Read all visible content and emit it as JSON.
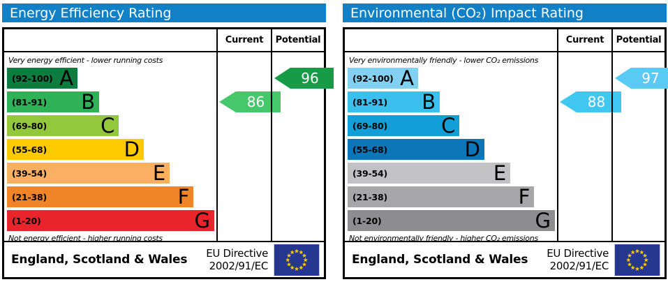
{
  "colors": {
    "title_bg": "#1280c6",
    "title_fg": "#ffffff",
    "eu_flag_bg": "#25378e",
    "eu_flag_star": "#ffcc00"
  },
  "panels": [
    {
      "title": "Energy Efficiency Rating",
      "header": {
        "current": "Current",
        "potential": "Potential"
      },
      "captions": {
        "top": "Very energy efficient - lower running costs",
        "bottom": "Not energy efficient - higher running costs"
      },
      "bands": [
        {
          "range": "(92-100)",
          "letter": "A",
          "color": "#0c7d3f",
          "width": "34%"
        },
        {
          "range": "(81-91)",
          "letter": "B",
          "color": "#2eb157",
          "width": "44.5%"
        },
        {
          "range": "(69-80)",
          "letter": "C",
          "color": "#93c83d",
          "width": "54%"
        },
        {
          "range": "(55-68)",
          "letter": "D",
          "color": "#fdca00",
          "width": "66%"
        },
        {
          "range": "(39-54)",
          "letter": "E",
          "color": "#fbaf63",
          "width": "78.5%"
        },
        {
          "range": "(21-38)",
          "letter": "F",
          "color": "#ef8528",
          "width": "90%"
        },
        {
          "range": "(1-20)",
          "letter": "G",
          "color": "#e9242b",
          "width": "100%"
        }
      ],
      "arrows": {
        "current": {
          "value": 86,
          "band_index": 1,
          "color": "#47c76c"
        },
        "potential": {
          "value": 96,
          "band_index": 0,
          "color": "#189b47"
        }
      },
      "footer": {
        "region": "England, Scotland & Wales",
        "directive_line1": "EU Directive",
        "directive_line2": "2002/91/EC"
      }
    },
    {
      "title": "Environmental (CO₂) Impact Rating",
      "header": {
        "current": "Current",
        "potential": "Potential"
      },
      "captions": {
        "top": "Very environmentally friendly - lower CO₂ emissions",
        "bottom": "Not environmentally friendly - higher CO₂ emissions"
      },
      "bands": [
        {
          "range": "(92-100)",
          "letter": "A",
          "color": "#82d1f2",
          "width": "34%"
        },
        {
          "range": "(81-91)",
          "letter": "B",
          "color": "#3bc0ee",
          "width": "44.5%"
        },
        {
          "range": "(69-80)",
          "letter": "C",
          "color": "#129ed7",
          "width": "54%"
        },
        {
          "range": "(55-68)",
          "letter": "D",
          "color": "#0c76b8",
          "width": "66%"
        },
        {
          "range": "(39-54)",
          "letter": "E",
          "color": "#c2c2c4",
          "width": "78.5%"
        },
        {
          "range": "(21-38)",
          "letter": "F",
          "color": "#a7a7a9",
          "width": "90%"
        },
        {
          "range": "(1-20)",
          "letter": "G",
          "color": "#8d8d8f",
          "width": "100%"
        }
      ],
      "arrows": {
        "current": {
          "value": 88,
          "band_index": 1,
          "color": "#3fc7f2"
        },
        "potential": {
          "value": 97,
          "band_index": 0,
          "color": "#58caf3"
        }
      },
      "footer": {
        "region": "England, Scotland & Wales",
        "directive_line1": "EU Directive",
        "directive_line2": "2002/91/EC"
      }
    }
  ],
  "chart_data": [
    {
      "type": "bar",
      "title": "Energy Efficiency Rating",
      "orientation": "horizontal",
      "categories": [
        "A",
        "B",
        "C",
        "D",
        "E",
        "F",
        "G"
      ],
      "category_ranges": [
        "92-100",
        "81-91",
        "69-80",
        "55-68",
        "39-54",
        "21-38",
        "1-20"
      ],
      "values": [
        34,
        44.5,
        54,
        66,
        78.5,
        90,
        100
      ],
      "values_note": "bar length as % of chart column width",
      "markers": {
        "current": 86,
        "potential": 96
      },
      "current_band": "B",
      "potential_band": "A",
      "top_caption": "Very energy efficient - lower running costs",
      "bottom_caption": "Not energy efficient - higher running costs",
      "footer": "England, Scotland & Wales · EU Directive 2002/91/EC"
    },
    {
      "type": "bar",
      "title": "Environmental (CO₂) Impact Rating",
      "orientation": "horizontal",
      "categories": [
        "A",
        "B",
        "C",
        "D",
        "E",
        "F",
        "G"
      ],
      "category_ranges": [
        "92-100",
        "81-91",
        "69-80",
        "55-68",
        "39-54",
        "21-38",
        "1-20"
      ],
      "values": [
        34,
        44.5,
        54,
        66,
        78.5,
        90,
        100
      ],
      "values_note": "bar length as % of chart column width",
      "markers": {
        "current": 88,
        "potential": 97
      },
      "current_band": "B",
      "potential_band": "A",
      "top_caption": "Very environmentally friendly - lower CO₂ emissions",
      "bottom_caption": "Not environmentally friendly - higher CO₂ emissions",
      "footer": "England, Scotland & Wales · EU Directive 2002/91/EC"
    }
  ]
}
